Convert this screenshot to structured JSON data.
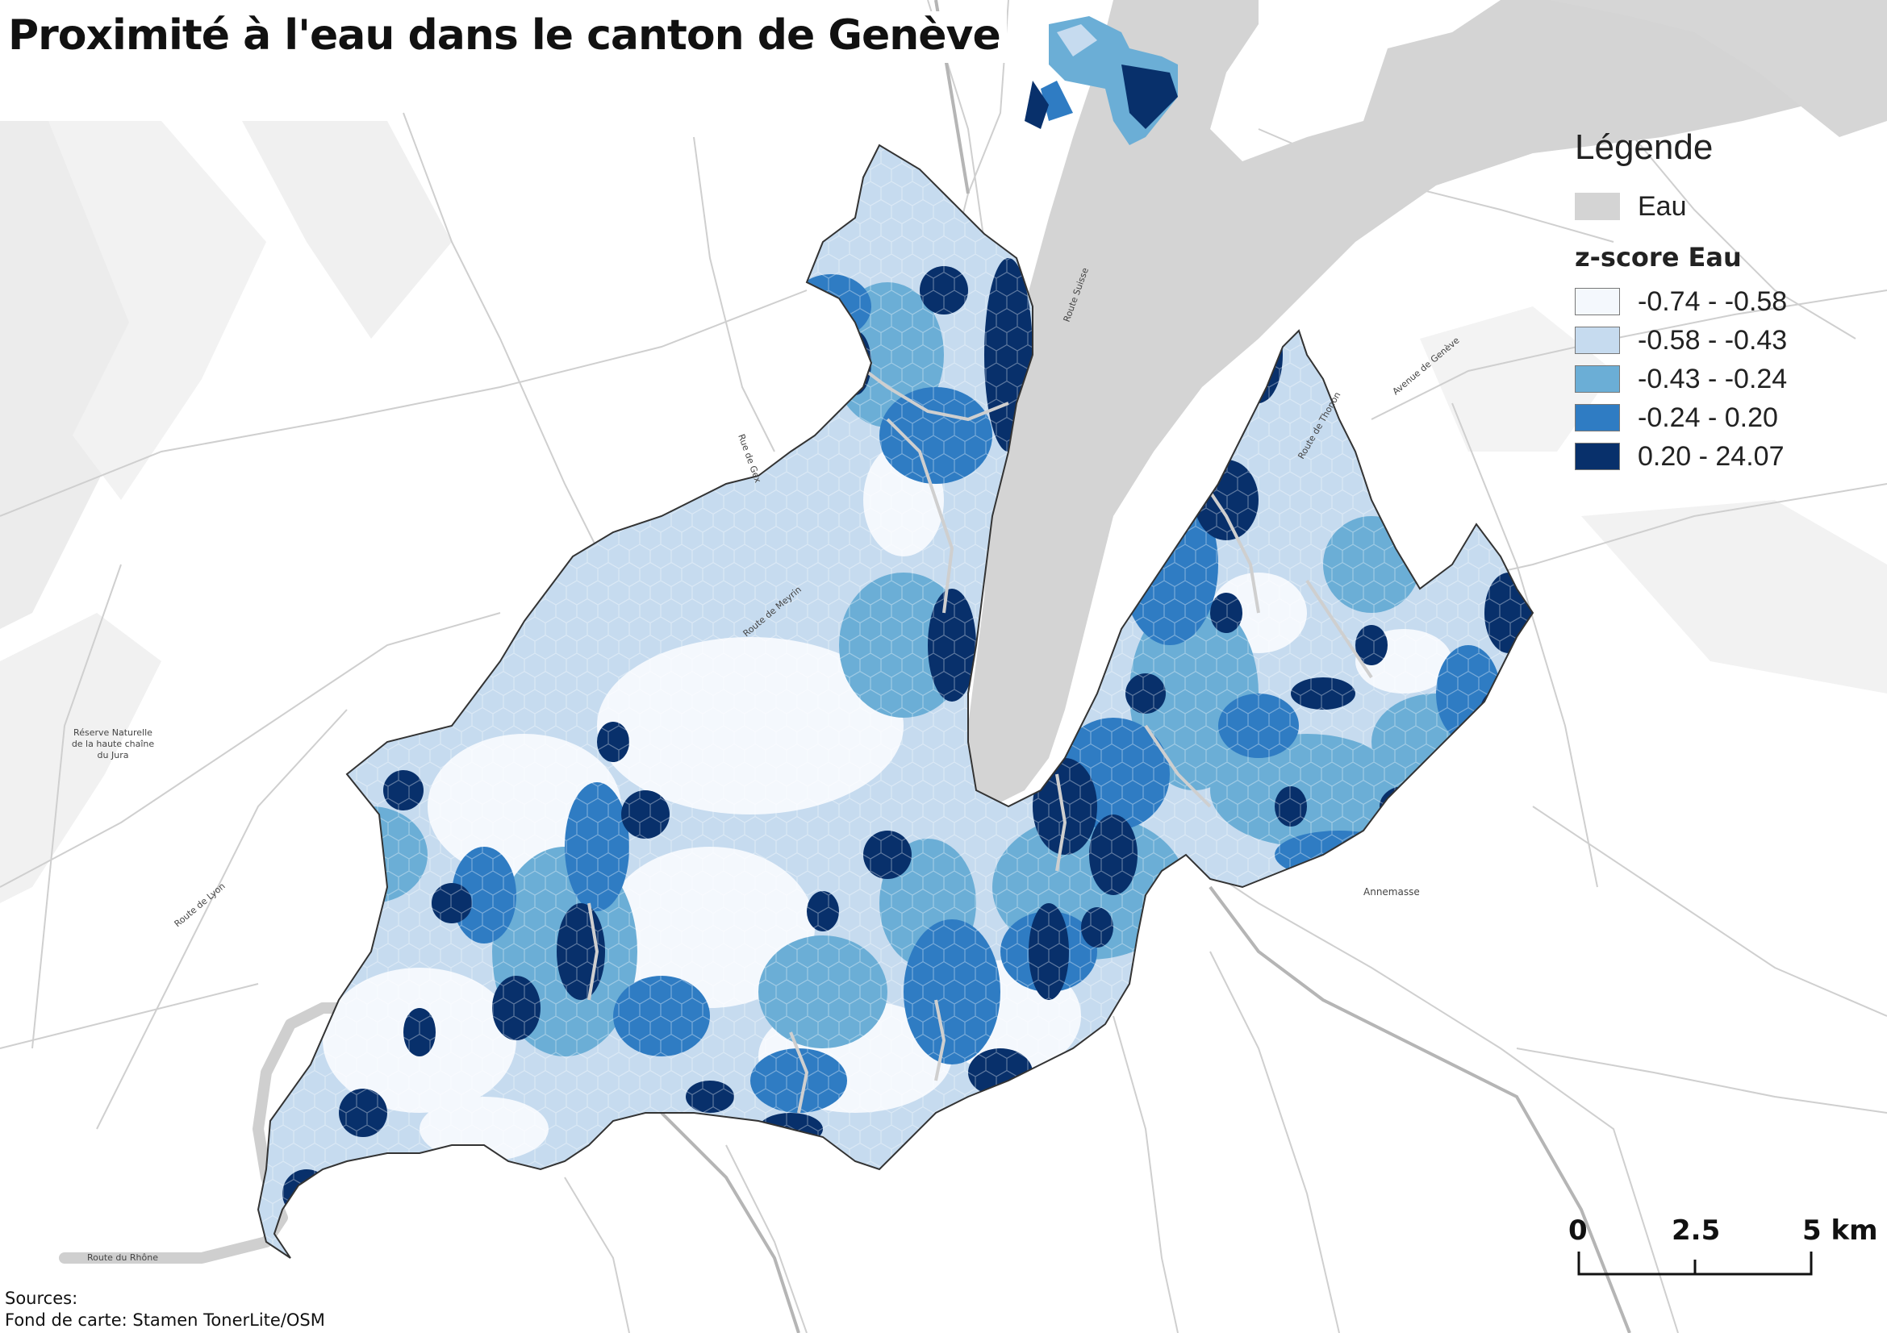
{
  "title": "Proximité à l'eau dans le canton de Genève",
  "legend": {
    "title": "Légende",
    "water_label": "Eau",
    "water_color": "#d4d4d4",
    "classification_title": "z-score Eau",
    "classes": [
      {
        "label": "-0.74 - -0.58",
        "color": "#f4f8fd"
      },
      {
        "label": "-0.58 - -0.43",
        "color": "#c6dbef"
      },
      {
        "label": "-0.43 - -0.24",
        "color": "#6baed6"
      },
      {
        "label": "-0.24 - 0.20",
        "color": "#2f7cc3"
      },
      {
        "label": "0.20 - 24.07",
        "color": "#08306b"
      }
    ]
  },
  "scale_bar": {
    "labels": [
      "0",
      "2.5",
      "5 km"
    ]
  },
  "sources": {
    "line1": "Sources:",
    "line2": "Fond de carte: Stamen TonerLite/OSM"
  },
  "place_labels": {
    "annemasse": "Annemasse",
    "reserve": [
      "Réserve Naturelle",
      "de la haute chaîne",
      "du Jura"
    ],
    "roads": [
      "Route de Meyrin",
      "Rue de Gex",
      "Route de Thonon",
      "Route Suisse",
      "Avenue de Genève",
      "Route du Rhône",
      "Route de Lyon"
    ]
  },
  "colors": {
    "background": "#ffffff",
    "canton_border": "#333333",
    "road": "#cfcfcf",
    "relief": "#efefef"
  }
}
